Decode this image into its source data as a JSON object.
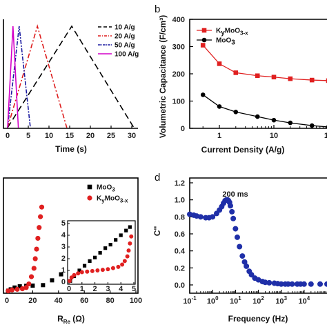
{
  "chart_data": [
    {
      "id": "a",
      "type": "line",
      "panel_label": "",
      "xlabel": "Time (s)",
      "ylabel": "",
      "xlim": [
        0,
        32
      ],
      "xticks": [
        "0",
        "5",
        "10",
        "15",
        "20",
        "25",
        "30"
      ],
      "series": [
        {
          "name": "10 A/g",
          "color": "#000000",
          "dash": "9,5",
          "x": [
            0,
            15.5,
            30.5
          ],
          "y": [
            0.0,
            1.0,
            0.0
          ]
        },
        {
          "name": "20 A/g",
          "color": "#dd1c1c",
          "dash": "7,3,2,3",
          "x": [
            0,
            7.2,
            14.3
          ],
          "y": [
            0.0,
            1.0,
            0.0
          ]
        },
        {
          "name": "50 A/g",
          "color": "#1a1aa0",
          "dash": "6,2,2,2",
          "x": [
            0,
            2.8,
            5.5
          ],
          "y": [
            0.0,
            1.0,
            0.0
          ]
        },
        {
          "name": "100 A/g",
          "color": "#d400c8",
          "dash": "",
          "x": [
            0,
            1.3,
            2.6
          ],
          "y": [
            0.0,
            1.0,
            0.0
          ]
        }
      ]
    },
    {
      "id": "b",
      "type": "line",
      "panel_label": "b",
      "xlabel": "Current Density (A/g)",
      "ylabel": "Volumetric Capacitance (F/cm³)",
      "xscale": "log",
      "xticks": [
        "1",
        "10",
        "10"
      ],
      "yticks": [
        "0",
        "100",
        "200",
        "300",
        "400"
      ],
      "ylim": [
        0,
        400
      ],
      "series": [
        {
          "name": "KyMoO3-x",
          "color": "#e02020",
          "marker": "square",
          "x": [
            0.5,
            1,
            2,
            5,
            10,
            20,
            50,
            100
          ],
          "y": [
            305,
            237,
            204,
            193,
            188,
            182,
            177,
            175
          ]
        },
        {
          "name": "MoO3",
          "color": "#000000",
          "marker": "circle",
          "x": [
            0.5,
            1,
            2,
            5,
            10,
            20,
            50,
            100
          ],
          "y": [
            123,
            80,
            60,
            43,
            30,
            20,
            10,
            5
          ]
        }
      ],
      "legend": [
        {
          "main": "K",
          "sub": "y",
          "main2": "MoO",
          "sub2": "3-x"
        },
        {
          "main": "MoO",
          "sub": "3",
          "main2": "",
          "sub2": ""
        }
      ]
    },
    {
      "id": "c",
      "type": "scatter",
      "panel_label": "",
      "xlabel_main": "R",
      "xlabel_sub": "Re",
      "xlabel_unit": "(Ω)",
      "xticks": [
        "0",
        "20",
        "40",
        "60",
        "80",
        "100"
      ],
      "xlim": [
        0,
        100
      ],
      "inset_xticks": [
        "0",
        "1",
        "2",
        "3",
        "4",
        "5"
      ],
      "inset_yticks": [
        "0",
        "1",
        "2",
        "3",
        "4",
        "5"
      ],
      "legend": [
        {
          "main": "MoO",
          "sub": "3",
          "main2": "",
          "sub2": ""
        },
        {
          "main": "K",
          "sub": "y",
          "main2": "MoO",
          "sub2": "3-x"
        }
      ],
      "series": [
        {
          "name": "MoO3",
          "color": "#000000",
          "marker": "square",
          "x": [
            1,
            3,
            6,
            10,
            15,
            20,
            28,
            35,
            42,
            50,
            60,
            70,
            80,
            88,
            96
          ],
          "y": [
            0.3,
            1.5,
            3.0,
            4.0,
            4.4,
            4.6,
            5.0,
            9,
            14,
            19,
            25,
            32,
            39,
            45,
            52
          ]
        },
        {
          "name": "KyMoO3-x",
          "color": "#e02020",
          "marker": "circle",
          "x": [
            1,
            4,
            8,
            12,
            15,
            17,
            19,
            21,
            22,
            23,
            24,
            25,
            26,
            27
          ],
          "y": [
            0.2,
            1.0,
            1.5,
            2.0,
            3.0,
            6,
            12,
            19,
            27,
            35,
            44,
            53,
            62,
            70
          ]
        }
      ],
      "inset_series": [
        {
          "name": "MoO3",
          "color": "#000000",
          "marker": "square",
          "x": [
            0.1,
            0.4,
            0.8,
            1.2,
            1.6,
            2.0,
            2.4,
            2.8,
            3.2,
            3.6,
            4.0,
            4.4,
            4.7
          ],
          "y": [
            0.1,
            0.5,
            1.0,
            1.4,
            1.8,
            2.1,
            2.5,
            2.9,
            3.2,
            3.6,
            4.0,
            4.4,
            4.7
          ]
        },
        {
          "name": "KyMoO3-x",
          "color": "#e02020",
          "marker": "circle",
          "x": [
            0.05,
            0.2,
            0.4,
            0.7,
            1.0,
            1.4,
            1.8,
            2.2,
            2.6,
            3.0,
            3.4,
            3.8,
            4.1,
            4.3,
            4.5,
            4.6,
            4.7,
            4.8
          ],
          "y": [
            0.1,
            0.4,
            0.6,
            0.75,
            0.85,
            0.9,
            0.95,
            1.0,
            1.05,
            1.1,
            1.2,
            1.3,
            1.5,
            1.8,
            2.2,
            2.7,
            3.3,
            3.9
          ]
        }
      ]
    },
    {
      "id": "d",
      "type": "scatter",
      "panel_label": "d",
      "xlabel": "Frequency (Hz)",
      "ylabel": "C''",
      "xscale": "log",
      "xlim": [
        0.1,
        100000
      ],
      "ylim": [
        0,
        1.2
      ],
      "yticks": [
        "0.0",
        "0.2",
        "0.4",
        "0.6",
        "0.8",
        "1.0",
        "1.2"
      ],
      "xticks": [
        {
          "base": "10",
          "exp": "-1"
        },
        {
          "base": "10",
          "exp": "0"
        },
        {
          "base": "10",
          "exp": "1"
        },
        {
          "base": "10",
          "exp": "2"
        },
        {
          "base": "10",
          "exp": "3"
        },
        {
          "base": "10",
          "exp": "4"
        }
      ],
      "annotation": "200 ms",
      "series": [
        {
          "name": "C''",
          "color": "#1f2fa8",
          "marker": "circle",
          "x": [
            0.1,
            0.15,
            0.2,
            0.3,
            0.5,
            0.7,
            1,
            1.5,
            2,
            2.5,
            3,
            3.5,
            4,
            4.5,
            5,
            5.5,
            6,
            7,
            8,
            10,
            12,
            15,
            20,
            25,
            30,
            40,
            50,
            70,
            100,
            150,
            200,
            300,
            500,
            700,
            1000,
            1500,
            2000,
            3000,
            5000,
            7000,
            10000,
            20000,
            50000,
            100000
          ],
          "y": [
            0.83,
            0.82,
            0.81,
            0.8,
            0.79,
            0.79,
            0.8,
            0.84,
            0.88,
            0.92,
            0.96,
            0.99,
            1.0,
            1.0,
            0.99,
            0.97,
            0.93,
            0.86,
            0.78,
            0.66,
            0.56,
            0.45,
            0.34,
            0.27,
            0.22,
            0.16,
            0.12,
            0.08,
            0.06,
            0.04,
            0.03,
            0.025,
            0.02,
            0.015,
            0.01,
            0.01,
            0.01,
            0.01,
            0.01,
            0.01,
            0.01,
            0.01,
            0.01,
            0.01
          ]
        }
      ]
    }
  ]
}
